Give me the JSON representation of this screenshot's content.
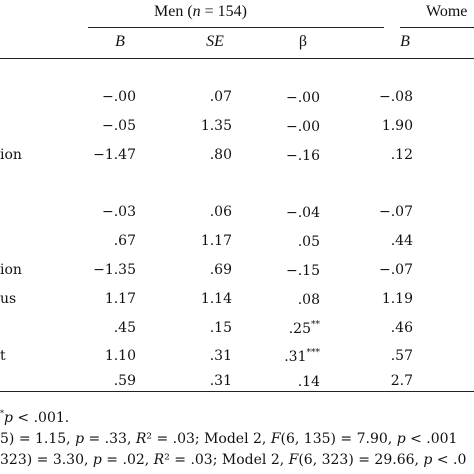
{
  "table": {
    "groups": [
      {
        "label": "Men (",
        "n_label": "n",
        "n_rest": " = 154)"
      },
      {
        "label": "Wome"
      }
    ],
    "columns": [
      "B",
      "SE",
      "β",
      "B"
    ],
    "rows": [
      {
        "label": "",
        "b1": "−.00",
        "se": ".07",
        "beta": "−.00",
        "beta_sup": "",
        "b2": "−.08"
      },
      {
        "label": "",
        "b1": "−.05",
        "se": "1.35",
        "beta": "−.00",
        "beta_sup": "",
        "b2": "1.90"
      },
      {
        "label": "ion",
        "b1": "−1.47",
        "se": ".80",
        "beta": "−.16",
        "beta_sup": "",
        "b2": ".12"
      },
      {
        "label": "",
        "b1": "−.03",
        "se": ".06",
        "beta": "−.04",
        "beta_sup": "",
        "b2": "−.07"
      },
      {
        "label": "",
        "b1": ".67",
        "se": "1.17",
        "beta": ".05",
        "beta_sup": "",
        "b2": ".44"
      },
      {
        "label": "ion",
        "b1": "−1.35",
        "se": ".69",
        "beta": "−.15",
        "beta_sup": "",
        "b2": "−.07"
      },
      {
        "label": "us",
        "b1": "1.17",
        "se": "1.14",
        "beta": ".08",
        "beta_sup": "",
        "b2": "1.19"
      },
      {
        "label": "",
        "b1": ".45",
        "se": ".15",
        "beta": ".25",
        "beta_sup": "**",
        "b2": ".46"
      },
      {
        "label": "t",
        "b1": "1.10",
        "se": ".31",
        "beta": ".31",
        "beta_sup": "***",
        "b2": ".57"
      },
      {
        "label": "",
        "b1": ".59",
        "se": ".31",
        "beta": ".14",
        "beta_sup": "",
        "b2": "2.7"
      }
    ],
    "notes": {
      "line1": {
        "sup": "*",
        "p": "p",
        "rest": " < .001."
      },
      "line2": {
        "a": "5) = 1.15, ",
        "p": "p",
        "b": " = .33, ",
        "R": "R",
        "c": "² = .03; Model 2, ",
        "F": "F",
        "d": "(6, 135) = 7.90, ",
        "p2": "p",
        "e": " < .001"
      },
      "line3": {
        "a": "323) = 3.30, ",
        "p": "p",
        "b": " = .02, ",
        "R": "R",
        "c": "² = .03; Model 2, ",
        "F": "F",
        "d": "(6, 323) = 29.66, ",
        "p2": "p",
        "e": " < .0"
      }
    }
  }
}
